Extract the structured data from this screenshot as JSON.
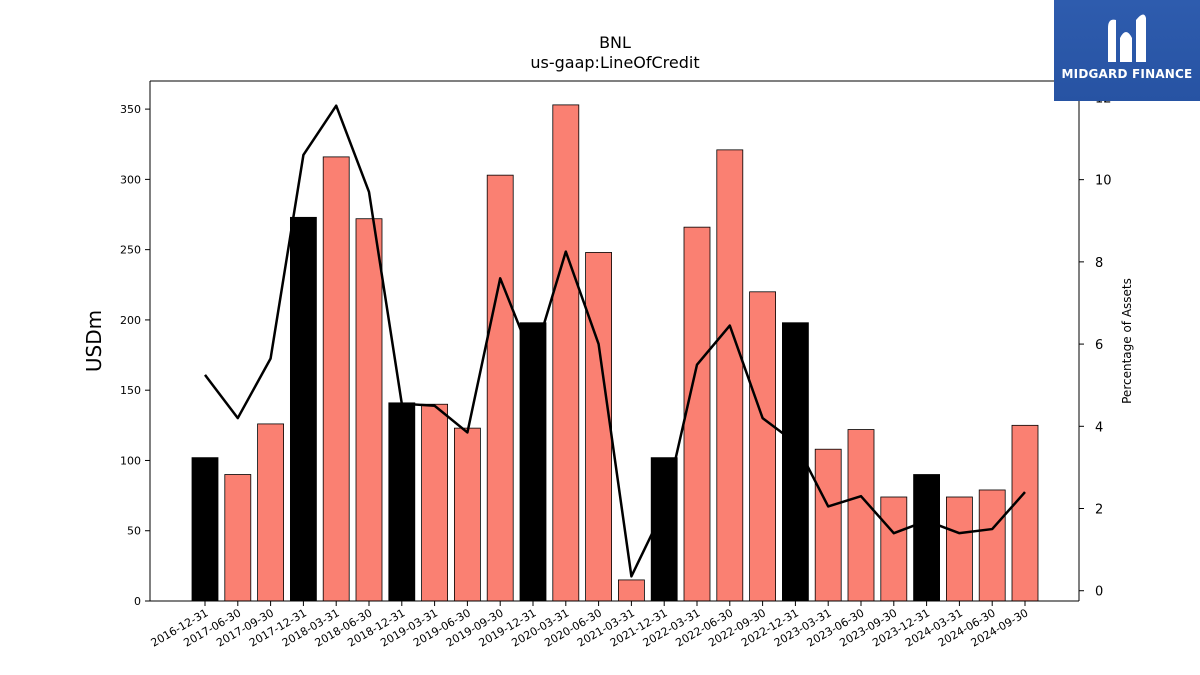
{
  "logo": {
    "text": "MIDGARD FINANCE",
    "icon": "midgard-m-icon",
    "bg_color": "#2b57a8"
  },
  "chart_data": {
    "type": "bar",
    "title": "BNL",
    "subtitle": "us-gaap:LineOfCredit",
    "ylabel": "USDm",
    "y2label": "Percentage of Assets",
    "ylim": [
      0,
      370
    ],
    "y2lim": [
      -0.25,
      12.4
    ],
    "yticks": [
      0,
      50,
      100,
      150,
      200,
      250,
      300,
      350
    ],
    "y2ticks": [
      0,
      2,
      4,
      6,
      8,
      10,
      12
    ],
    "categories": [
      "2016-12-31",
      "2017-06-30",
      "2017-09-30",
      "2017-12-31",
      "2018-03-31",
      "2018-06-30",
      "2018-12-31",
      "2019-03-31",
      "2019-06-30",
      "2019-09-30",
      "2019-12-31",
      "2020-03-31",
      "2020-06-30",
      "2021-03-31",
      "2021-12-31",
      "2022-03-31",
      "2022-06-30",
      "2022-09-30",
      "2022-12-31",
      "2023-03-31",
      "2023-06-30",
      "2023-09-30",
      "2023-12-31",
      "2024-03-31",
      "2024-06-30",
      "2024-09-30"
    ],
    "series": [
      {
        "type": "bar",
        "values": [
          102,
          90,
          126,
          273,
          316,
          272,
          141,
          140,
          123,
          303,
          198,
          353,
          248,
          15,
          102,
          266,
          321,
          220,
          198,
          108,
          122,
          74,
          90,
          74,
          79,
          125
        ]
      },
      {
        "type": "line",
        "axis": "right",
        "values": [
          5.25,
          4.2,
          5.65,
          10.6,
          11.8,
          9.7,
          4.55,
          4.5,
          3.85,
          7.6,
          5.6,
          8.25,
          6.0,
          0.35,
          2.0,
          5.5,
          6.45,
          4.2,
          3.6,
          2.05,
          2.3,
          1.4,
          1.7,
          1.4,
          1.5,
          2.4
        ]
      }
    ],
    "bar_colors": {
      "annual": "#000000",
      "quarterly": "#fa8072"
    },
    "annual_categories": [
      "2016-12-31",
      "2017-12-31",
      "2018-12-31",
      "2019-12-31",
      "2021-12-31",
      "2022-12-31",
      "2023-12-31"
    ],
    "line_color": "#000000",
    "grid": false,
    "legend": "none"
  }
}
